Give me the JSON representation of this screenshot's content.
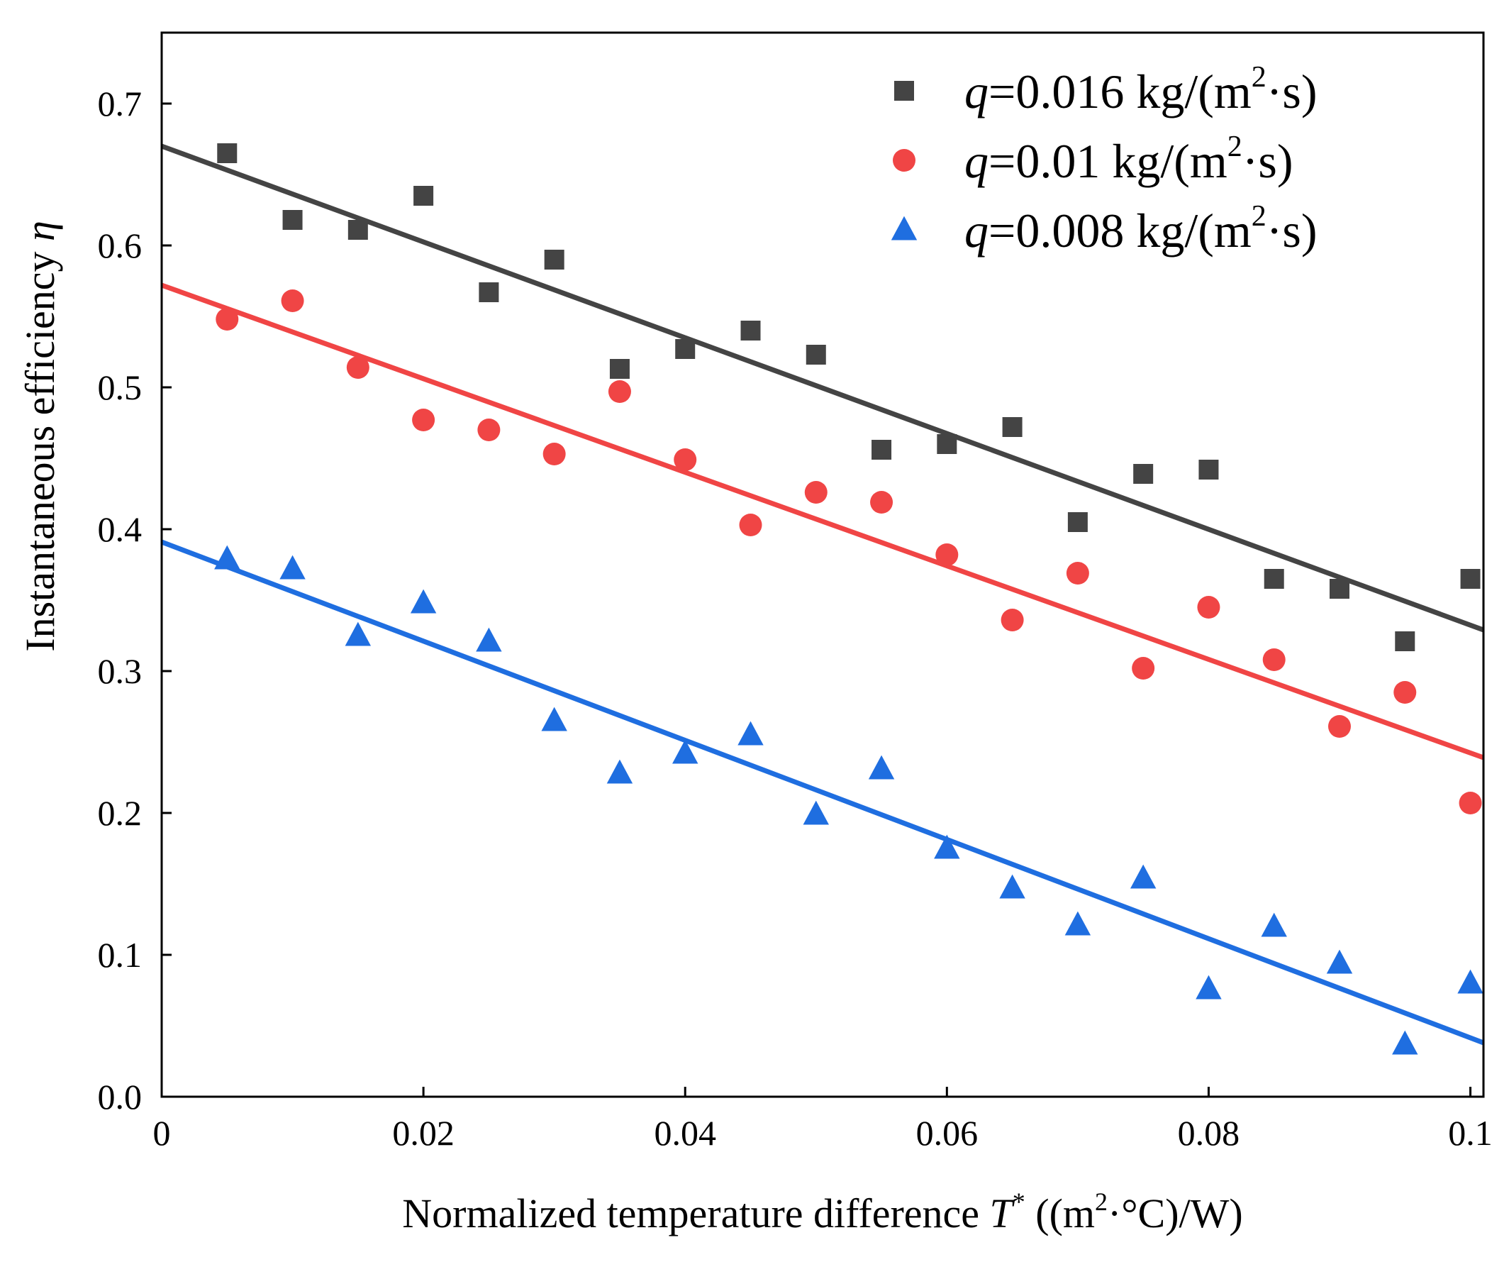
{
  "chart_data": {
    "type": "scatter",
    "title": "",
    "xlabel": {
      "text": "Normalized temperature difference ",
      "var": "T",
      "var_sup": "*",
      "unit_open": " ((m",
      "unit_sup": "2",
      "unit_close": "·°C)/W)"
    },
    "ylabel": {
      "text": "Instantaneous efficiency ",
      "var": "η"
    },
    "xlim": [
      0,
      0.101
    ],
    "ylim": [
      0,
      0.75
    ],
    "xticks": [
      0,
      0.02,
      0.04,
      0.06,
      0.08,
      0.1
    ],
    "xtick_labels": [
      "0",
      "0.02",
      "0.04",
      "0.06",
      "0.08",
      "0.1"
    ],
    "yticks": [
      0,
      0.1,
      0.2,
      0.3,
      0.4,
      0.5,
      0.6,
      0.7
    ],
    "ytick_labels": [
      "0.0",
      "0.1",
      "0.2",
      "0.3",
      "0.4",
      "0.5",
      "0.6",
      "0.7"
    ],
    "legend_position": "top-right",
    "x": [
      0.005,
      0.01,
      0.015,
      0.02,
      0.025,
      0.03,
      0.035,
      0.04,
      0.045,
      0.05,
      0.055,
      0.06,
      0.065,
      0.07,
      0.075,
      0.08,
      0.085,
      0.09,
      0.095,
      0.1
    ],
    "series": [
      {
        "name": "q=0.016 kg/(m²·s)",
        "legend": {
          "var": "q",
          "pre": "=0.016 kg/(m",
          "sup": "2",
          "post": "·s)"
        },
        "marker": "square",
        "color": "#444444",
        "values": [
          0.665,
          0.618,
          0.611,
          0.635,
          0.567,
          0.59,
          0.513,
          0.527,
          0.54,
          0.523,
          0.456,
          0.46,
          0.472,
          0.405,
          0.439,
          0.442,
          0.365,
          0.358,
          0.321,
          0.365
        ],
        "fit": {
          "x": [
            0,
            0.101
          ],
          "y": [
            0.67,
            0.329
          ]
        }
      },
      {
        "name": "q=0.01 kg/(m²·s)",
        "legend": {
          "var": "q",
          "pre": "=0.01 kg/(m",
          "sup": "2",
          "post": "·s)"
        },
        "marker": "circle",
        "color": "#f04545",
        "values": [
          0.548,
          0.561,
          0.514,
          0.477,
          0.47,
          0.453,
          0.497,
          0.449,
          0.403,
          0.426,
          0.419,
          0.382,
          0.336,
          0.369,
          0.302,
          0.345,
          0.308,
          0.261,
          0.285,
          0.207
        ],
        "fit": {
          "x": [
            0,
            0.101
          ],
          "y": [
            0.572,
            0.239
          ]
        }
      },
      {
        "name": "q=0.008 kg/(m²·s)",
        "legend": {
          "var": "q",
          "pre": "=0.008 kg/(m",
          "sup": "2",
          "post": "·s)"
        },
        "marker": "triangle",
        "color": "#1f6ee0",
        "values": [
          0.379,
          0.372,
          0.325,
          0.348,
          0.321,
          0.265,
          0.228,
          0.242,
          0.255,
          0.199,
          0.231,
          0.175,
          0.147,
          0.121,
          0.154,
          0.076,
          0.12,
          0.094,
          0.037,
          0.08
        ],
        "fit": {
          "x": [
            0,
            0.101
          ],
          "y": [
            0.391,
            0.038
          ]
        }
      }
    ]
  }
}
